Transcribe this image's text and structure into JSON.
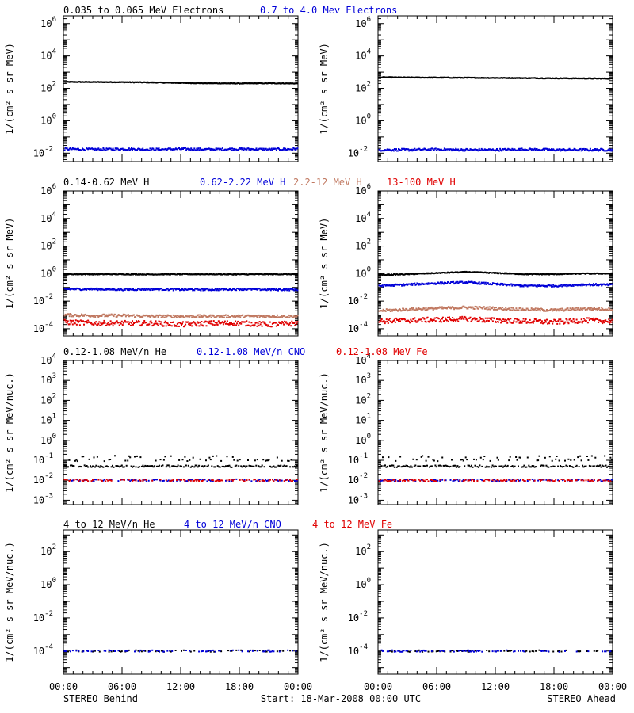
{
  "colors": {
    "black": "#000000",
    "blue": "#0000d8",
    "brown": "#c07860",
    "red": "#e00000"
  },
  "figure": {
    "left_footer": "STEREO Behind",
    "center_footer": "Start: 18-Mar-2008 00:00 UTC",
    "right_footer": "STEREO Ahead",
    "time_ticks": [
      "00:00",
      "06:00",
      "12:00",
      "18:00",
      "00:00"
    ]
  },
  "rows": [
    {
      "titles": [
        {
          "text": "0.035 to 0.065 MeV Electrons",
          "color": "black"
        },
        {
          "text": "0.7 to 4.0 Mev Electrons",
          "color": "blue"
        }
      ],
      "ylabel": "1/(cm² s sr MeV)"
    },
    {
      "titles": [
        {
          "text": "0.14-0.62 MeV H",
          "color": "black"
        },
        {
          "text": "0.62-2.22 MeV H",
          "color": "blue"
        },
        {
          "text": "2.2-12 MeV H",
          "color": "brown"
        },
        {
          "text": "13-100 MeV H",
          "color": "red"
        }
      ],
      "ylabel": "1/(cm² s sr MeV)"
    },
    {
      "titles": [
        {
          "text": "0.12-1.08 MeV/n He",
          "color": "black"
        },
        {
          "text": "0.12-1.08 MeV/n CNO",
          "color": "blue"
        },
        {
          "text": "0.12-1.08 MeV Fe",
          "color": "red"
        }
      ],
      "ylabel": "1/(cm² s sr MeV/nuc.)"
    },
    {
      "titles": [
        {
          "text": "4 to 12 MeV/n He",
          "color": "black"
        },
        {
          "text": "4 to 12 MeV/n CNO",
          "color": "blue"
        },
        {
          "text": "4 to 12 MeV Fe",
          "color": "red"
        }
      ],
      "ylabel": "1/(cm² s sr MeV/nuc.)"
    }
  ],
  "chart_data": [
    {
      "type": "scatter",
      "row": 0,
      "side": "STEREO Behind",
      "yscale": "log",
      "ylim": [
        0.003,
        3000000
      ],
      "yticks": [
        {
          "v": 1000000,
          "b": "10",
          "e": "6"
        },
        {
          "v": 10000,
          "b": "10",
          "e": "4"
        },
        {
          "v": 100,
          "b": "10",
          "e": "2"
        },
        {
          "v": 1,
          "b": "10",
          "e": "0"
        },
        {
          "v": 0.01,
          "b": "10",
          "e": "-2"
        }
      ],
      "xlim": [
        0,
        24
      ],
      "series": [
        {
          "color": "black",
          "x": [
            0,
            3,
            6,
            9,
            12,
            15,
            18,
            21,
            24
          ],
          "y": [
            250,
            245,
            240,
            230,
            215,
            205,
            200,
            205,
            200
          ]
        },
        {
          "color": "blue",
          "x": [
            0,
            3,
            6,
            9,
            12,
            15,
            18,
            21,
            24
          ],
          "y": [
            0.018,
            0.017,
            0.018,
            0.017,
            0.018,
            0.017,
            0.018,
            0.017,
            0.018
          ]
        }
      ]
    },
    {
      "type": "scatter",
      "row": 0,
      "side": "STEREO Ahead",
      "yscale": "log",
      "ylim": [
        0.003,
        3000000
      ],
      "yticks": [
        {
          "v": 1000000,
          "b": "10",
          "e": "6"
        },
        {
          "v": 10000,
          "b": "10",
          "e": "4"
        },
        {
          "v": 100,
          "b": "10",
          "e": "2"
        },
        {
          "v": 1,
          "b": "10",
          "e": "0"
        },
        {
          "v": 0.01,
          "b": "10",
          "e": "-2"
        }
      ],
      "xlim": [
        0,
        24
      ],
      "series": [
        {
          "color": "black",
          "x": [
            0,
            3,
            6,
            9,
            12,
            15,
            18,
            21,
            24
          ],
          "y": [
            480,
            470,
            460,
            450,
            440,
            430,
            420,
            410,
            400
          ]
        },
        {
          "color": "blue",
          "x": [
            0,
            3,
            6,
            9,
            12,
            15,
            18,
            21,
            24
          ],
          "y": [
            0.016,
            0.016,
            0.017,
            0.016,
            0.016,
            0.017,
            0.016,
            0.016,
            0.016
          ]
        }
      ]
    },
    {
      "type": "scatter",
      "row": 1,
      "side": "STEREO Behind",
      "yscale": "log",
      "ylim": [
        3e-05,
        1000000
      ],
      "yticks": [
        {
          "v": 1000000,
          "b": "10",
          "e": "6"
        },
        {
          "v": 10000,
          "b": "10",
          "e": "4"
        },
        {
          "v": 100,
          "b": "10",
          "e": "2"
        },
        {
          "v": 1,
          "b": "10",
          "e": "0"
        },
        {
          "v": 0.01,
          "b": "10",
          "e": "-2"
        },
        {
          "v": 0.0001,
          "b": "10",
          "e": "-4"
        }
      ],
      "xlim": [
        0,
        24
      ],
      "series": [
        {
          "color": "black",
          "x": [
            0,
            3,
            6,
            9,
            12,
            15,
            18,
            21,
            24
          ],
          "y": [
            0.9,
            0.9,
            0.9,
            0.88,
            0.9,
            0.9,
            0.88,
            0.9,
            0.9
          ]
        },
        {
          "color": "blue",
          "x": [
            0,
            3,
            6,
            9,
            12,
            15,
            18,
            21,
            24
          ],
          "y": [
            0.075,
            0.075,
            0.07,
            0.075,
            0.07,
            0.07,
            0.075,
            0.07,
            0.07
          ]
        },
        {
          "color": "brown",
          "x": [
            0,
            3,
            6,
            9,
            12,
            15,
            18,
            21,
            24
          ],
          "y": [
            0.001,
            0.0009,
            0.0009,
            0.0008,
            0.0008,
            0.0008,
            0.0008,
            0.0008,
            0.0008
          ]
        },
        {
          "color": "red",
          "x": [
            0,
            3,
            6,
            9,
            12,
            15,
            18,
            21,
            24
          ],
          "y": [
            0.0003,
            0.00025,
            0.00025,
            0.00025,
            0.0002,
            0.00025,
            0.00025,
            0.0002,
            0.00025
          ]
        }
      ]
    },
    {
      "type": "scatter",
      "row": 1,
      "side": "STEREO Ahead",
      "yscale": "log",
      "ylim": [
        3e-05,
        1000000
      ],
      "yticks": [
        {
          "v": 1000000,
          "b": "10",
          "e": "6"
        },
        {
          "v": 10000,
          "b": "10",
          "e": "4"
        },
        {
          "v": 100,
          "b": "10",
          "e": "2"
        },
        {
          "v": 1,
          "b": "10",
          "e": "0"
        },
        {
          "v": 0.01,
          "b": "10",
          "e": "-2"
        },
        {
          "v": 0.0001,
          "b": "10",
          "e": "-4"
        }
      ],
      "xlim": [
        0,
        24
      ],
      "series": [
        {
          "color": "black",
          "x": [
            0,
            3,
            6,
            9,
            12,
            15,
            18,
            21,
            24
          ],
          "y": [
            0.8,
            0.9,
            1.1,
            1.3,
            1.1,
            0.9,
            0.9,
            1.0,
            1.0
          ]
        },
        {
          "color": "blue",
          "x": [
            0,
            3,
            6,
            9,
            12,
            15,
            18,
            21,
            24
          ],
          "y": [
            0.13,
            0.16,
            0.2,
            0.23,
            0.17,
            0.13,
            0.13,
            0.16,
            0.15
          ]
        },
        {
          "color": "brown",
          "x": [
            0,
            3,
            6,
            9,
            12,
            15,
            18,
            21,
            24
          ],
          "y": [
            0.002,
            0.0025,
            0.003,
            0.0035,
            0.003,
            0.0025,
            0.0022,
            0.0028,
            0.0026
          ]
        },
        {
          "color": "red",
          "x": [
            0,
            3,
            6,
            9,
            12,
            15,
            18,
            21,
            24
          ],
          "y": [
            0.00035,
            0.0004,
            0.00045,
            0.0005,
            0.0004,
            0.00035,
            0.0003,
            0.0004,
            0.00035
          ]
        }
      ]
    },
    {
      "type": "scatter",
      "row": 2,
      "side": "STEREO Behind",
      "yscale": "log",
      "ylim": [
        0.0006,
        10000
      ],
      "yticks": [
        {
          "v": 10000,
          "b": "10",
          "e": "4"
        },
        {
          "v": 1000,
          "b": "10",
          "e": "3"
        },
        {
          "v": 100,
          "b": "10",
          "e": "2"
        },
        {
          "v": 10,
          "b": "10",
          "e": "1"
        },
        {
          "v": 1,
          "b": "10",
          "e": "0"
        },
        {
          "v": 0.1,
          "b": "10",
          "e": "-1"
        },
        {
          "v": 0.01,
          "b": "10",
          "e": "-2"
        },
        {
          "v": 0.001,
          "b": "10",
          "e": "-3"
        }
      ],
      "xlim": [
        0,
        24
      ],
      "series": [
        {
          "color": "black",
          "x": [
            0,
            3,
            6,
            9,
            12,
            15,
            18,
            21,
            24
          ],
          "y": [
            0.05,
            0.05,
            0.05,
            0.05,
            0.05,
            0.05,
            0.05,
            0.05,
            0.05
          ]
        },
        {
          "color": "blue",
          "x": [
            0,
            3,
            6,
            9,
            12,
            15,
            18,
            21,
            24
          ],
          "y": [
            0.01,
            0.01,
            0.01,
            0.01,
            0.01,
            0.01,
            0.01,
            0.01,
            0.01
          ]
        },
        {
          "color": "red",
          "x": [
            0,
            3,
            6,
            9,
            12,
            15,
            18,
            21,
            24
          ],
          "y": [
            0.01,
            0.01,
            0.01,
            0.01,
            0.01,
            0.01,
            0.01,
            0.01,
            0.01
          ]
        }
      ]
    },
    {
      "type": "scatter",
      "row": 2,
      "side": "STEREO Ahead",
      "yscale": "log",
      "ylim": [
        0.0006,
        10000
      ],
      "yticks": [
        {
          "v": 10000,
          "b": "10",
          "e": "4"
        },
        {
          "v": 1000,
          "b": "10",
          "e": "3"
        },
        {
          "v": 100,
          "b": "10",
          "e": "2"
        },
        {
          "v": 10,
          "b": "10",
          "e": "1"
        },
        {
          "v": 1,
          "b": "10",
          "e": "0"
        },
        {
          "v": 0.1,
          "b": "10",
          "e": "-1"
        },
        {
          "v": 0.01,
          "b": "10",
          "e": "-2"
        },
        {
          "v": 0.001,
          "b": "10",
          "e": "-3"
        }
      ],
      "xlim": [
        0,
        24
      ],
      "series": [
        {
          "color": "black",
          "x": [
            0,
            3,
            6,
            9,
            12,
            15,
            18,
            21,
            24
          ],
          "y": [
            0.05,
            0.05,
            0.05,
            0.05,
            0.05,
            0.05,
            0.05,
            0.05,
            0.05
          ]
        },
        {
          "color": "blue",
          "x": [
            0,
            3,
            6,
            9,
            12,
            15,
            18,
            21,
            24
          ],
          "y": [
            0.01,
            0.01,
            0.01,
            0.01,
            0.01,
            0.01,
            0.01,
            0.01,
            0.01
          ]
        },
        {
          "color": "red",
          "x": [
            0,
            3,
            6,
            9,
            12,
            15,
            18,
            21,
            24
          ],
          "y": [
            0.01,
            0.01,
            0.01,
            0.01,
            0.01,
            0.01,
            0.01,
            0.01,
            0.01
          ]
        }
      ]
    },
    {
      "type": "scatter",
      "row": 3,
      "side": "STEREO Behind",
      "yscale": "log",
      "ylim": [
        4e-06,
        2000
      ],
      "yticks": [
        {
          "v": 100,
          "b": "10",
          "e": "2"
        },
        {
          "v": 1,
          "b": "10",
          "e": "0"
        },
        {
          "v": 0.01,
          "b": "10",
          "e": "-2"
        },
        {
          "v": 0.0001,
          "b": "10",
          "e": "-4"
        }
      ],
      "xlim": [
        0,
        24
      ],
      "series": [
        {
          "color": "black",
          "x": [
            0,
            3,
            6,
            9,
            12,
            15,
            18,
            21,
            24
          ],
          "y": [
            0.0001,
            0.0001,
            0.0001,
            0.0001,
            0.0001,
            0.0001,
            0.0001,
            0.0001,
            0.0001
          ]
        },
        {
          "color": "blue",
          "x": [
            0,
            3,
            6,
            9,
            12,
            15,
            18,
            21,
            24
          ],
          "y": [
            0.0001,
            0.0001,
            0.0001,
            0.0001,
            0.0001,
            0.0001,
            0.0001,
            0.0001,
            0.0001
          ]
        }
      ]
    },
    {
      "type": "scatter",
      "row": 3,
      "side": "STEREO Ahead",
      "yscale": "log",
      "ylim": [
        4e-06,
        2000
      ],
      "yticks": [
        {
          "v": 100,
          "b": "10",
          "e": "2"
        },
        {
          "v": 1,
          "b": "10",
          "e": "0"
        },
        {
          "v": 0.01,
          "b": "10",
          "e": "-2"
        },
        {
          "v": 0.0001,
          "b": "10",
          "e": "-4"
        }
      ],
      "xlim": [
        0,
        24
      ],
      "series": [
        {
          "color": "black",
          "x": [
            0,
            3,
            6,
            9,
            12,
            15,
            18,
            21,
            24
          ],
          "y": [
            0.0001,
            0.0001,
            0.0001,
            0.0001,
            0.0001,
            0.0001,
            0.0001,
            0.0001,
            0.0001
          ]
        },
        {
          "color": "blue",
          "x": [
            0,
            3,
            6,
            9,
            12,
            15,
            18,
            21,
            24
          ],
          "y": [
            0.0001,
            0.0001,
            0.0001,
            0.0001,
            0.0001,
            0.0001,
            0.0001,
            0.0001,
            0.0001
          ]
        }
      ]
    }
  ]
}
